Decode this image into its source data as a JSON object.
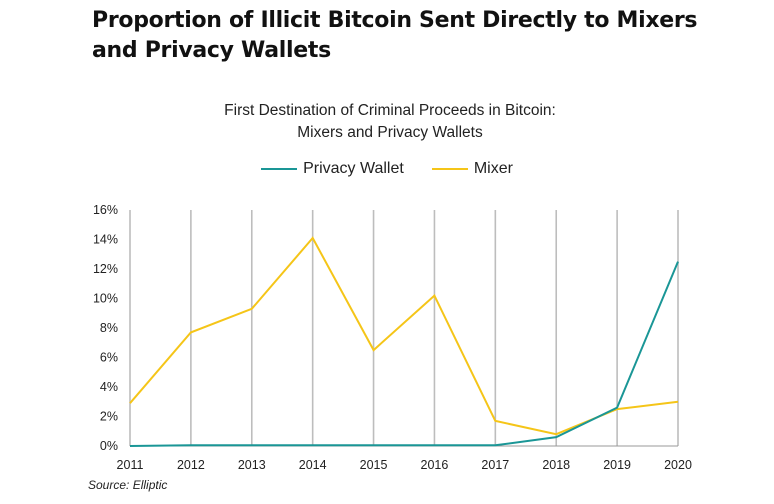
{
  "page_title": "Proportion of Illicit Bitcoin Sent Directly to Mixers and Privacy Wallets",
  "source": "Source: Elliptic",
  "colors": {
    "privacy_wallet": "#1a9696",
    "mixer": "#f5c518",
    "grid": "#bdbdbd",
    "axis": "#999999"
  },
  "chart_data": {
    "type": "line",
    "title": "First Destination of Criminal Proceeds in Bitcoin:",
    "subtitle": "Mixers and Privacy Wallets",
    "xlabel": "",
    "ylabel": "",
    "x": [
      "2011",
      "2012",
      "2013",
      "2014",
      "2015",
      "2016",
      "2017",
      "2018",
      "2019",
      "2020"
    ],
    "ylim": [
      0,
      16
    ],
    "yticks": [
      0,
      2,
      4,
      6,
      8,
      10,
      12,
      14,
      16
    ],
    "ytick_labels": [
      "0%",
      "2%",
      "4%",
      "6%",
      "8%",
      "10%",
      "12%",
      "14%",
      "16%"
    ],
    "grid": "vertical",
    "legend_position": "top-center",
    "series": [
      {
        "name": "Privacy Wallet",
        "color": "#1a9696",
        "values": [
          0.0,
          0.05,
          0.05,
          0.05,
          0.05,
          0.05,
          0.05,
          0.6,
          2.6,
          12.5
        ]
      },
      {
        "name": "Mixer",
        "color": "#f5c518",
        "values": [
          2.9,
          7.7,
          9.3,
          14.1,
          6.5,
          10.2,
          1.7,
          0.8,
          2.5,
          3.0
        ]
      }
    ]
  }
}
